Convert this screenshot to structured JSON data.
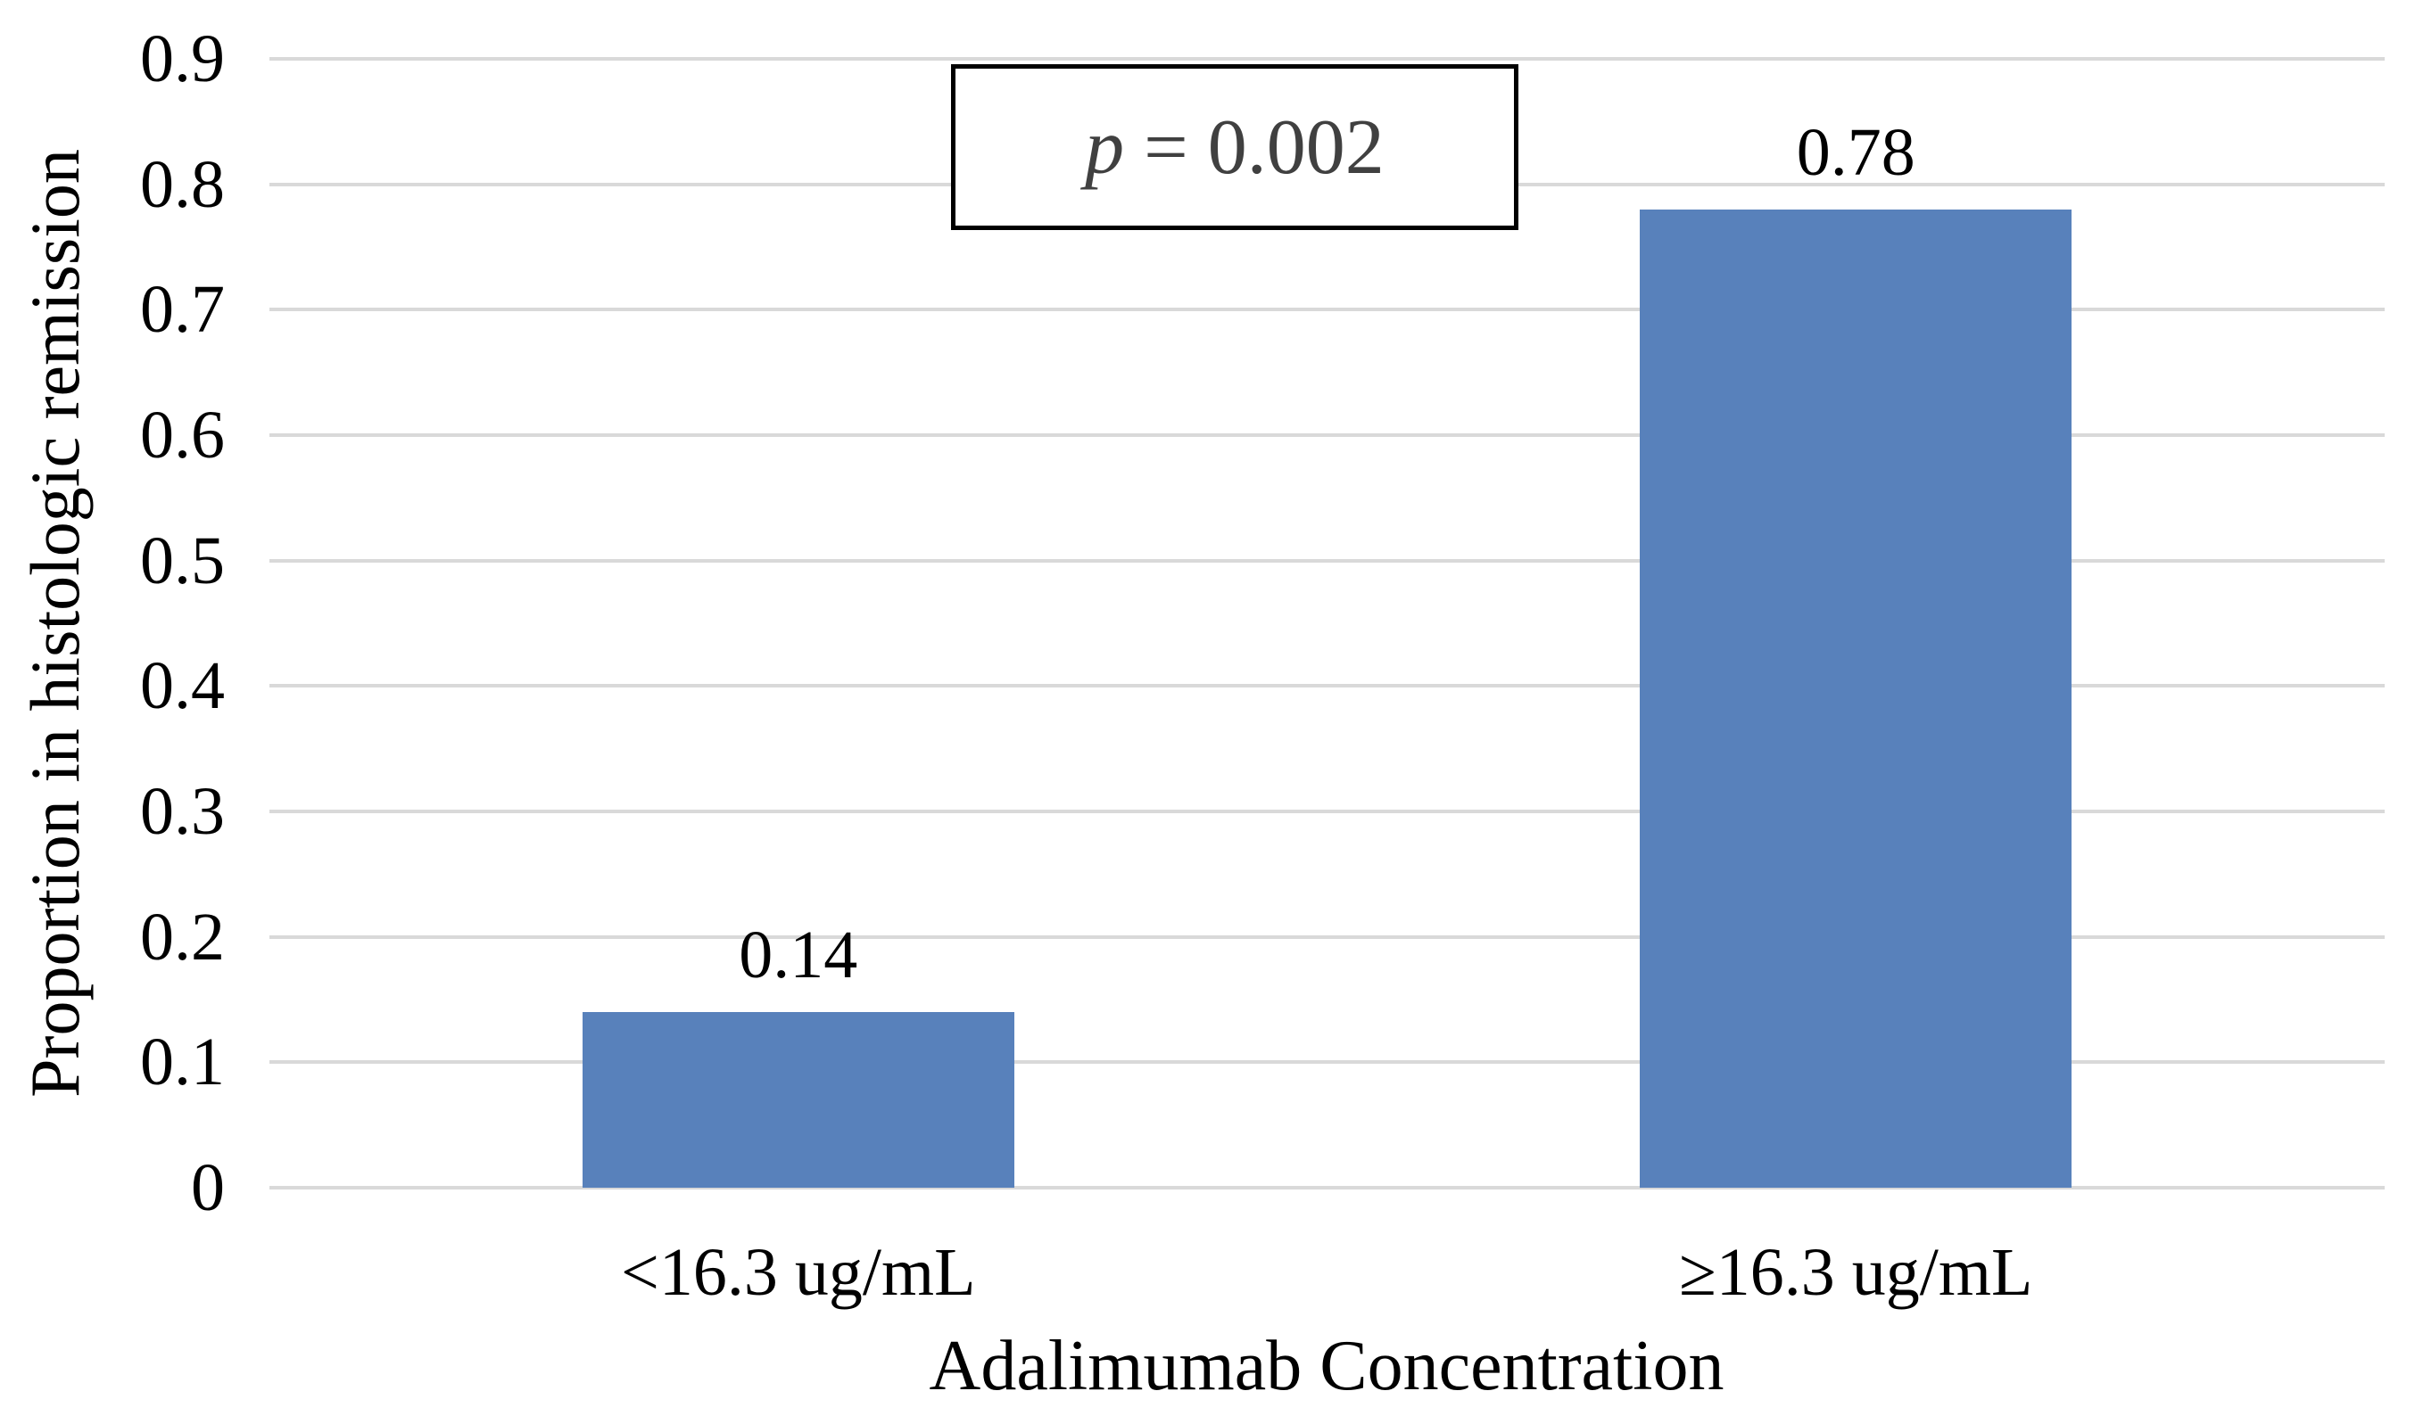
{
  "chart_data": {
    "type": "bar",
    "title": "",
    "xlabel": "Adalimumab Concentration",
    "ylabel": "Proportion in histologic remission",
    "categories": [
      "<16.3 ug/mL",
      "≥16.3 ug/mL"
    ],
    "values": [
      0.14,
      0.78
    ],
    "value_labels": [
      "0.14",
      "0.78"
    ],
    "ylim": [
      0,
      0.9
    ],
    "ytick_values": [
      0,
      0.1,
      0.2,
      0.3,
      0.4,
      0.5,
      0.6,
      0.7,
      0.8,
      0.9
    ],
    "ytick_labels": [
      "0",
      "0.1",
      "0.2",
      "0.3",
      "0.4",
      "0.5",
      "0.6",
      "0.7",
      "0.8",
      "0.9"
    ],
    "grid": "horizontal",
    "legend": "none",
    "annotation": {
      "var": "p",
      "rest": " = 0.002",
      "text": "p = 0.002"
    },
    "colors": {
      "bar": "#5881BB",
      "gridline": "#D9D9D9",
      "annotation_text": "#404040",
      "annotation_border": "#000000",
      "text": "#000000",
      "background": "#FFFFFF"
    }
  }
}
